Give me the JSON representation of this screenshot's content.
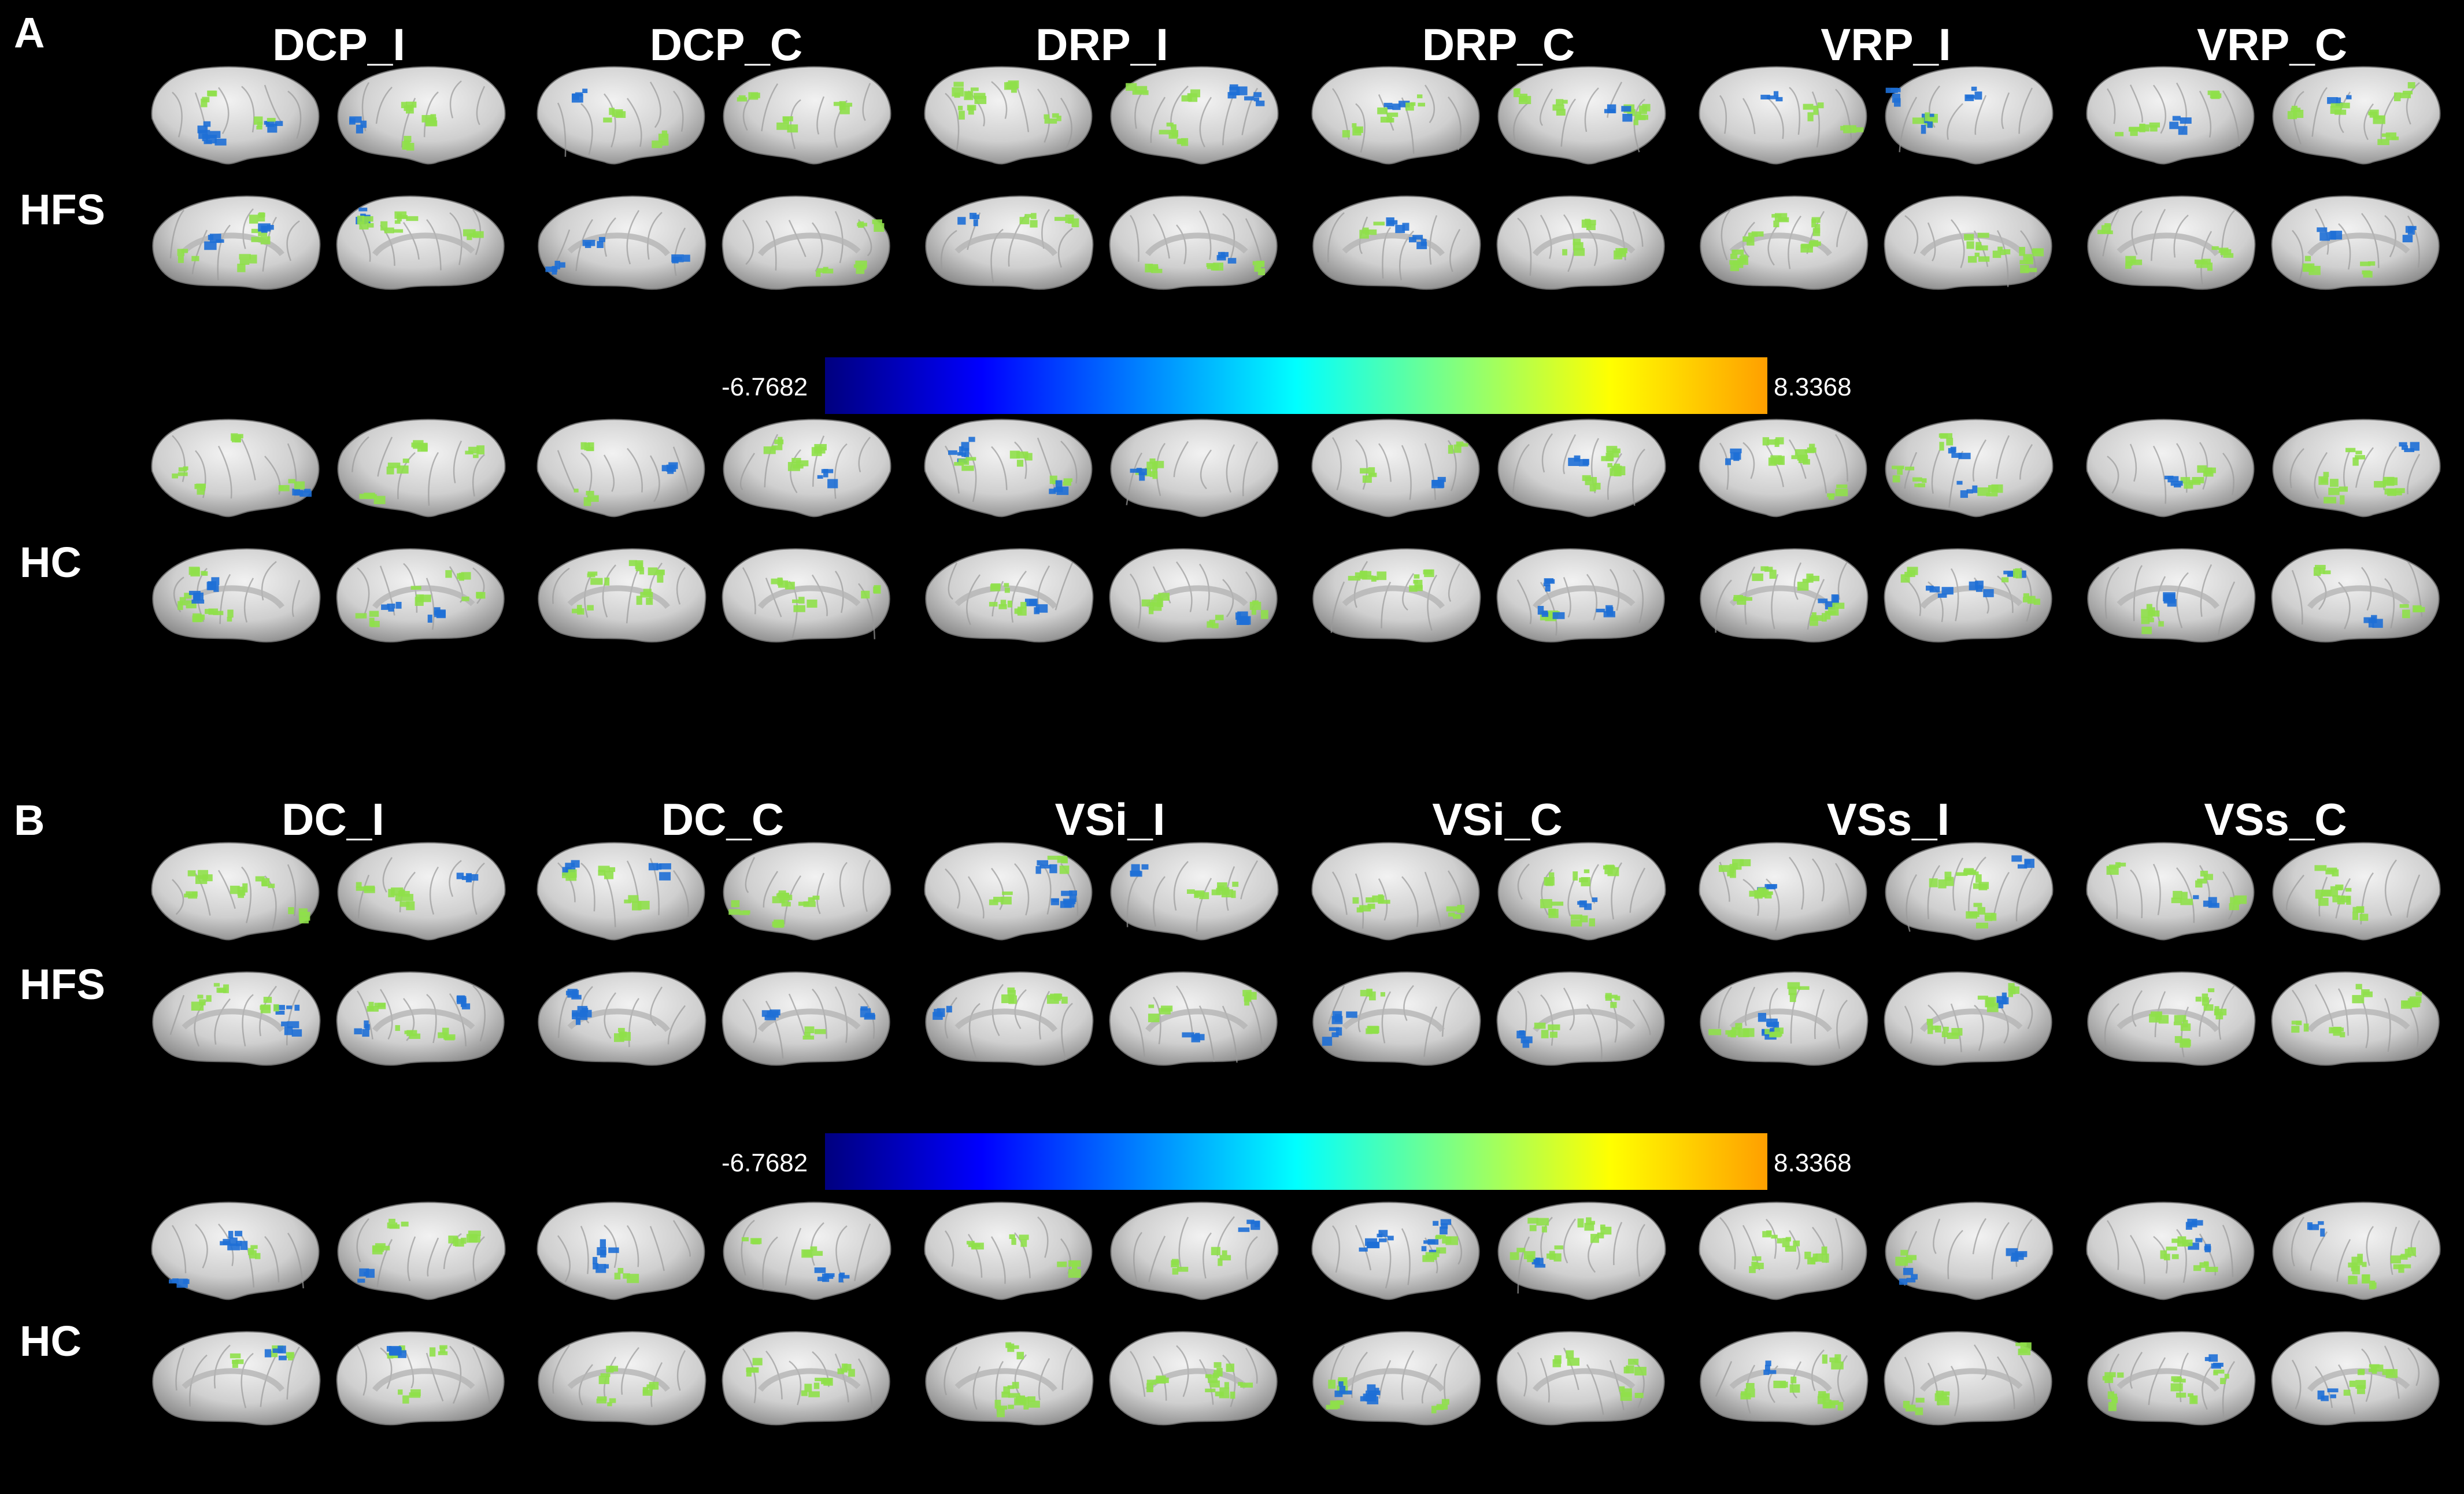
{
  "panels": [
    {
      "label": "A",
      "columns": [
        "DCP_I",
        "DCP_C",
        "DRP_I",
        "DRP_C",
        "VRP_I",
        "VRP_C"
      ],
      "rows": [
        "HFS",
        "HC"
      ],
      "colorbar": {
        "min": "-6.7682",
        "max": "8.3368"
      }
    },
    {
      "label": "B",
      "columns": [
        "DC_I",
        "DC_C",
        "VSi_I",
        "VSi_C",
        "VSs_I",
        "VSs_C"
      ],
      "rows": [
        "HFS",
        "HC"
      ],
      "colorbar": {
        "min": "-6.7682",
        "max": "8.3368"
      }
    }
  ],
  "colormap": [
    "#00007f",
    "#0000ff",
    "#0080ff",
    "#00ffff",
    "#80ff80",
    "#ffff00",
    "#ff9f00"
  ],
  "activation_colors": {
    "positive": "#8fe04a",
    "negative": "#1e6fd6"
  }
}
